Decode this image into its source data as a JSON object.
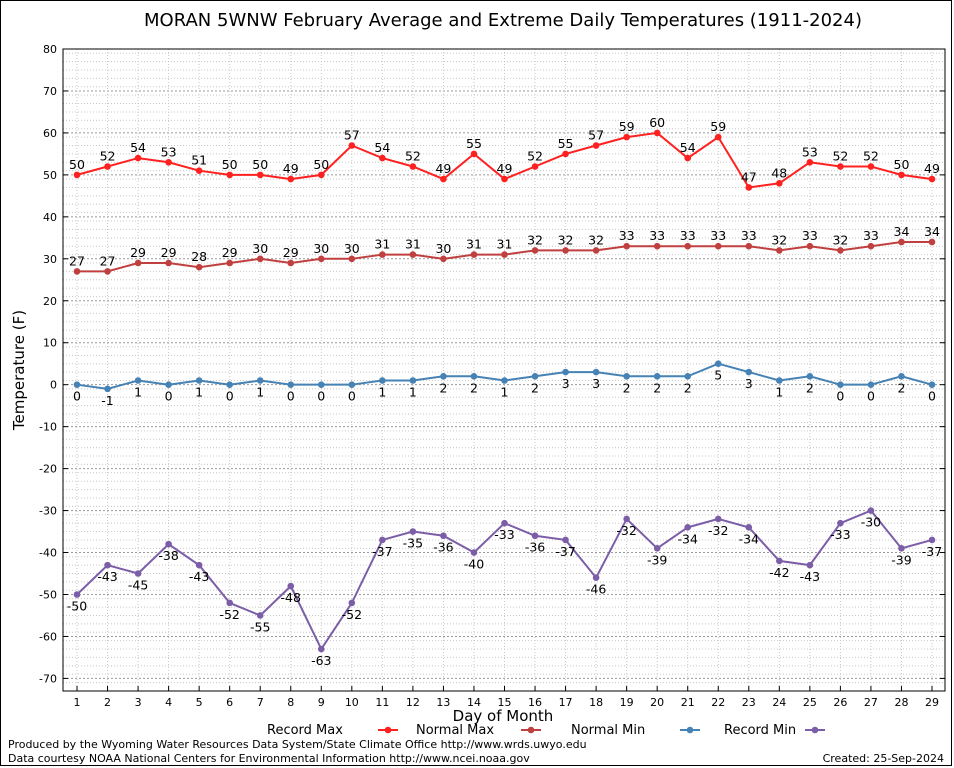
{
  "chart_data": {
    "type": "line",
    "title": "MORAN 5WNW February Average and Extreme Daily Temperatures (1911-2024)",
    "xlabel": "Day of Month",
    "ylabel": "Temperature (F)",
    "ylim": [
      -73,
      80
    ],
    "yticks": [
      80,
      70,
      60,
      50,
      40,
      30,
      20,
      10,
      0,
      -10,
      -20,
      -30,
      -40,
      -50,
      -60,
      -70
    ],
    "x": [
      1,
      2,
      3,
      4,
      5,
      6,
      7,
      8,
      9,
      10,
      11,
      12,
      13,
      14,
      15,
      16,
      17,
      18,
      19,
      20,
      21,
      22,
      23,
      24,
      25,
      26,
      27,
      28,
      29
    ],
    "grid": true,
    "legend_position": "bottom",
    "series": [
      {
        "name": "Record Max",
        "color": "#ff2020",
        "values": [
          50,
          52,
          54,
          53,
          51,
          50,
          50,
          49,
          50,
          57,
          54,
          52,
          49,
          55,
          49,
          52,
          55,
          57,
          59,
          60,
          54,
          59,
          47,
          48,
          53,
          52,
          52,
          50,
          49
        ]
      },
      {
        "name": "Normal Max",
        "color": "#c04040",
        "values": [
          27,
          27,
          29,
          29,
          28,
          29,
          30,
          29,
          30,
          30,
          31,
          31,
          30,
          31,
          31,
          32,
          32,
          32,
          33,
          33,
          33,
          33,
          33,
          32,
          33,
          32,
          33,
          34,
          34
        ]
      },
      {
        "name": "Normal Min",
        "color": "#4682b4",
        "values": [
          0,
          -1,
          1,
          0,
          1,
          0,
          1,
          0,
          0,
          0,
          1,
          1,
          2,
          2,
          1,
          2,
          3,
          3,
          2,
          2,
          2,
          5,
          3,
          1,
          2,
          0,
          0,
          2,
          0
        ]
      },
      {
        "name": "Record Min",
        "color": "#7b5ea7",
        "values": [
          -50,
          -43,
          -45,
          -38,
          -43,
          -52,
          -55,
          -48,
          -63,
          -52,
          -37,
          -35,
          -36,
          -40,
          -33,
          -36,
          -37,
          -46,
          -32,
          -39,
          -34,
          -32,
          -34,
          -42,
          -43,
          -33,
          -30,
          -39,
          -37
        ]
      }
    ]
  },
  "footer": {
    "line1": "Produced by the Wyoming Water Resources Data System/State Climate Office http://www.wrds.uwyo.edu",
    "line2": "Data courtesy NOAA National Centers for Environmental Information http://www.ncei.noaa.gov",
    "created": "Created:  25-Sep-2024"
  }
}
